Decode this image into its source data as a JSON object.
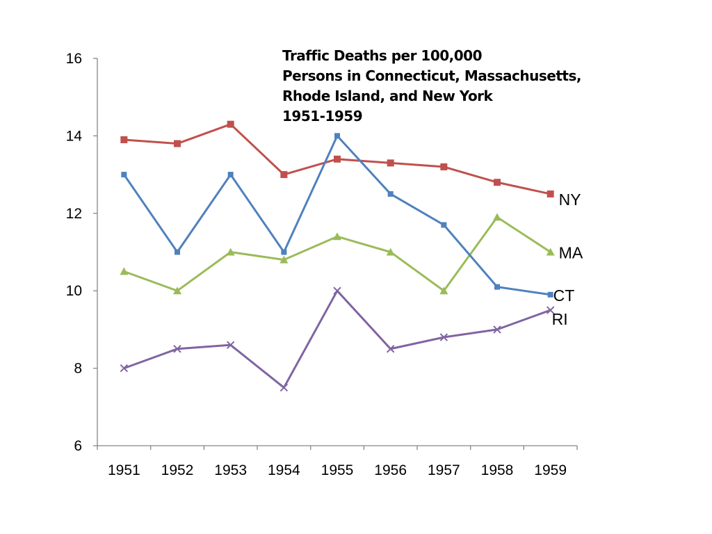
{
  "chart_data": {
    "type": "line",
    "title_lines": [
      "Traffic Deaths per 100,000",
      "Persons in Connecticut, Massachusetts,",
      "Rhode Island, and New York",
      "1951-1959"
    ],
    "xlabel": "",
    "ylabel": "",
    "x": [
      "1951",
      "1952",
      "1953",
      "1954",
      "1955",
      "1956",
      "1957",
      "1958",
      "1959"
    ],
    "ylim": [
      6,
      16
    ],
    "yticks": [
      6,
      8,
      10,
      12,
      14,
      16
    ],
    "grid": false,
    "legend": "inline labels at series ends",
    "series": [
      {
        "name": "NY",
        "color": "#c0504d",
        "marker": "square",
        "values": [
          13.9,
          13.8,
          14.3,
          13.0,
          13.4,
          13.3,
          13.2,
          12.8,
          12.5
        ]
      },
      {
        "name": "MA",
        "color": "#9bbb59",
        "marker": "triangle",
        "values": [
          10.5,
          10.0,
          11.0,
          10.8,
          11.4,
          11.0,
          10.0,
          11.9,
          11.0
        ]
      },
      {
        "name": "CT",
        "color": "#4f81bd",
        "marker": "square-small",
        "values": [
          13.0,
          11.0,
          13.0,
          11.0,
          14.0,
          12.5,
          11.7,
          10.1,
          9.9
        ]
      },
      {
        "name": "RI",
        "color": "#8064a2",
        "marker": "x",
        "values": [
          8.0,
          8.5,
          8.6,
          7.5,
          10.0,
          8.5,
          8.8,
          9.0,
          9.5
        ]
      }
    ]
  }
}
